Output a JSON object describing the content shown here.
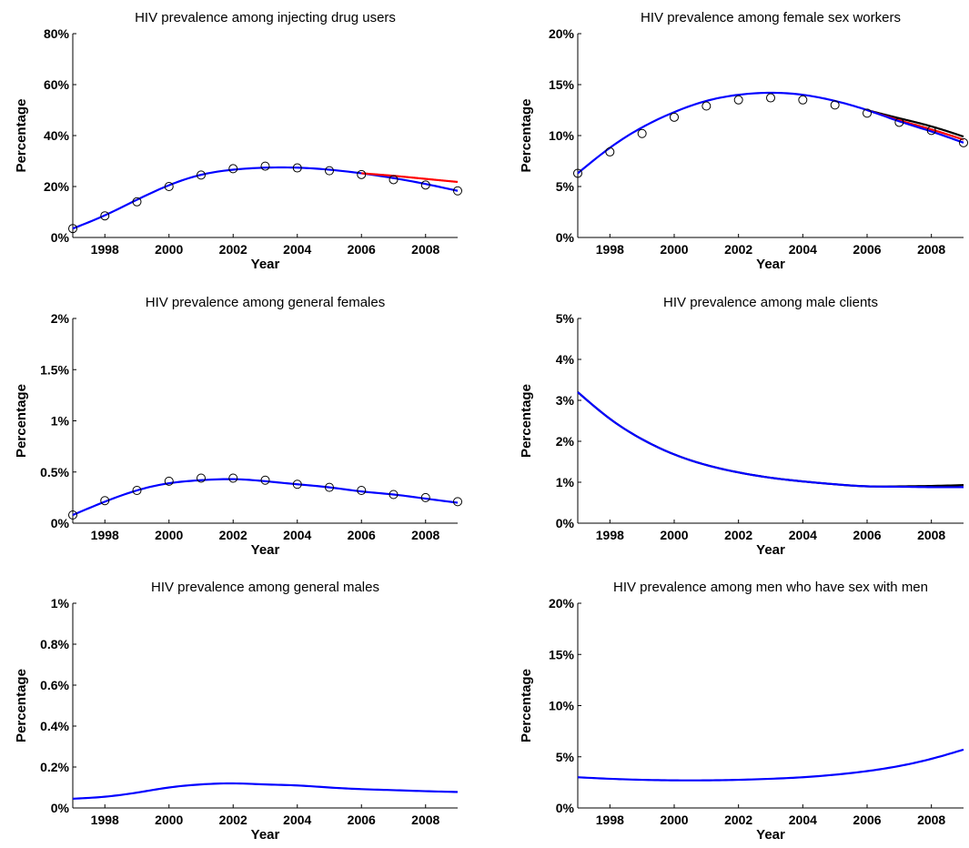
{
  "colors": {
    "blue": "#0000ff",
    "red": "#ff0000",
    "black": "#000000"
  },
  "chart_data": [
    {
      "type": "line",
      "title": "HIV prevalence among injecting drug users",
      "xlabel": "Year",
      "ylabel": "Percentage",
      "xlim": [
        1997,
        2009
      ],
      "ylim": [
        0,
        80
      ],
      "xticks": [
        "1998",
        "2000",
        "2002",
        "2004",
        "2006",
        "2008"
      ],
      "yticks": [
        "0%",
        "20%",
        "40%",
        "60%",
        "80%"
      ],
      "grid": false,
      "x": [
        1997,
        1998,
        1999,
        2000,
        2001,
        2002,
        2003,
        2004,
        2005,
        2006,
        2007,
        2008,
        2009
      ],
      "observed": [
        3.5,
        8.5,
        14,
        20,
        24.5,
        27,
        28,
        27.3,
        26.2,
        24.7,
        22.7,
        20.6,
        18.3
      ],
      "series": [
        {
          "color": "#0000ff",
          "values": [
            3.5,
            8.7,
            14.8,
            20.5,
            24.6,
            26.6,
            27.4,
            27.4,
            26.6,
            25.2,
            23.3,
            21.0,
            18.3
          ]
        },
        {
          "color": "#ff0000",
          "from": 2006,
          "values": [
            null,
            null,
            null,
            null,
            null,
            null,
            null,
            null,
            null,
            25.2,
            24.2,
            23.0,
            21.8
          ]
        }
      ]
    },
    {
      "type": "line",
      "title": "HIV prevalence among female sex workers",
      "xlabel": "Year",
      "ylabel": "Percentage",
      "xlim": [
        1997,
        2009
      ],
      "ylim": [
        0,
        20
      ],
      "xticks": [
        "1998",
        "2000",
        "2002",
        "2004",
        "2006",
        "2008"
      ],
      "yticks": [
        "0%",
        "5%",
        "10%",
        "15%",
        "20%"
      ],
      "grid": false,
      "x": [
        1997,
        1998,
        1999,
        2000,
        2001,
        2002,
        2003,
        2004,
        2005,
        2006,
        2007,
        2008,
        2009
      ],
      "observed": [
        6.3,
        8.4,
        10.2,
        11.8,
        12.9,
        13.5,
        13.7,
        13.5,
        13.0,
        12.2,
        11.3,
        10.5,
        9.3
      ],
      "series": [
        {
          "color": "#000000",
          "values": [
            null,
            null,
            null,
            null,
            null,
            null,
            null,
            null,
            null,
            12.5,
            11.7,
            10.9,
            9.9
          ]
        },
        {
          "color": "#ff0000",
          "values": [
            null,
            null,
            null,
            null,
            null,
            null,
            null,
            null,
            null,
            12.5,
            11.5,
            10.6,
            9.6
          ]
        },
        {
          "color": "#0000ff",
          "values": [
            6.3,
            8.8,
            10.8,
            12.3,
            13.4,
            14.0,
            14.2,
            14.0,
            13.4,
            12.5,
            11.4,
            10.4,
            9.3
          ]
        }
      ]
    },
    {
      "type": "line",
      "title": "HIV prevalence among general females",
      "xlabel": "Year",
      "ylabel": "Percentage",
      "xlim": [
        1997,
        2009
      ],
      "ylim": [
        0,
        2
      ],
      "xticks": [
        "1998",
        "2000",
        "2002",
        "2004",
        "2006",
        "2008"
      ],
      "yticks": [
        "0%",
        "0.5%",
        "1%",
        "1.5%",
        "2%"
      ],
      "grid": false,
      "x": [
        1997,
        1998,
        1999,
        2000,
        2001,
        2002,
        2003,
        2004,
        2005,
        2006,
        2007,
        2008,
        2009
      ],
      "observed": [
        0.08,
        0.22,
        0.32,
        0.41,
        0.44,
        0.44,
        0.42,
        0.38,
        0.35,
        0.32,
        0.28,
        0.25,
        0.21
      ],
      "series": [
        {
          "color": "#0000ff",
          "values": [
            0.08,
            0.21,
            0.32,
            0.39,
            0.42,
            0.43,
            0.41,
            0.38,
            0.35,
            0.31,
            0.28,
            0.24,
            0.2
          ]
        }
      ]
    },
    {
      "type": "line",
      "title": "HIV prevalence among male clients",
      "xlabel": "Year",
      "ylabel": "Percentage",
      "xlim": [
        1997,
        2009
      ],
      "ylim": [
        0,
        5
      ],
      "xticks": [
        "1998",
        "2000",
        "2002",
        "2004",
        "2006",
        "2008"
      ],
      "yticks": [
        "0%",
        "1%",
        "2%",
        "3%",
        "4%",
        "5%"
      ],
      "grid": false,
      "x": [
        1997,
        1998,
        1999,
        2000,
        2001,
        2002,
        2003,
        2004,
        2005,
        2006,
        2007,
        2008,
        2009
      ],
      "series": [
        {
          "color": "#000000",
          "values": [
            3.2,
            2.55,
            2.05,
            1.68,
            1.42,
            1.24,
            1.11,
            1.02,
            0.95,
            0.9,
            0.9,
            0.91,
            0.93
          ]
        },
        {
          "color": "#0000ff",
          "values": [
            3.2,
            2.55,
            2.05,
            1.68,
            1.42,
            1.24,
            1.11,
            1.02,
            0.95,
            0.9,
            0.89,
            0.88,
            0.88
          ]
        }
      ]
    },
    {
      "type": "line",
      "title": "HIV prevalence among general males",
      "xlabel": "Year",
      "ylabel": "Percentage",
      "xlim": [
        1997,
        2009
      ],
      "ylim": [
        0,
        1
      ],
      "xticks": [
        "1998",
        "2000",
        "2002",
        "2004",
        "2006",
        "2008"
      ],
      "yticks": [
        "0%",
        "0.2%",
        "0.4%",
        "0.6%",
        "0.8%",
        "1%"
      ],
      "grid": false,
      "x": [
        1997,
        1998,
        1999,
        2000,
        2001,
        2002,
        2003,
        2004,
        2005,
        2006,
        2007,
        2008,
        2009
      ],
      "series": [
        {
          "color": "#0000ff",
          "values": [
            0.045,
            0.055,
            0.075,
            0.1,
            0.115,
            0.12,
            0.115,
            0.11,
            0.1,
            0.092,
            0.087,
            0.082,
            0.078
          ]
        }
      ]
    },
    {
      "type": "line",
      "title": "HIV prevalence among men who have sex with men",
      "xlabel": "Year",
      "ylabel": "Percentage",
      "xlim": [
        1997,
        2009
      ],
      "ylim": [
        0,
        20
      ],
      "xticks": [
        "1998",
        "2000",
        "2002",
        "2004",
        "2006",
        "2008"
      ],
      "yticks": [
        "0%",
        "5%",
        "10%",
        "15%",
        "20%"
      ],
      "grid": false,
      "x": [
        1997,
        1998,
        1999,
        2000,
        2001,
        2002,
        2003,
        2004,
        2005,
        2006,
        2007,
        2008,
        2009
      ],
      "series": [
        {
          "color": "#0000ff",
          "values": [
            3.0,
            2.85,
            2.75,
            2.7,
            2.7,
            2.75,
            2.85,
            3.0,
            3.25,
            3.6,
            4.1,
            4.8,
            5.7
          ]
        }
      ]
    }
  ]
}
